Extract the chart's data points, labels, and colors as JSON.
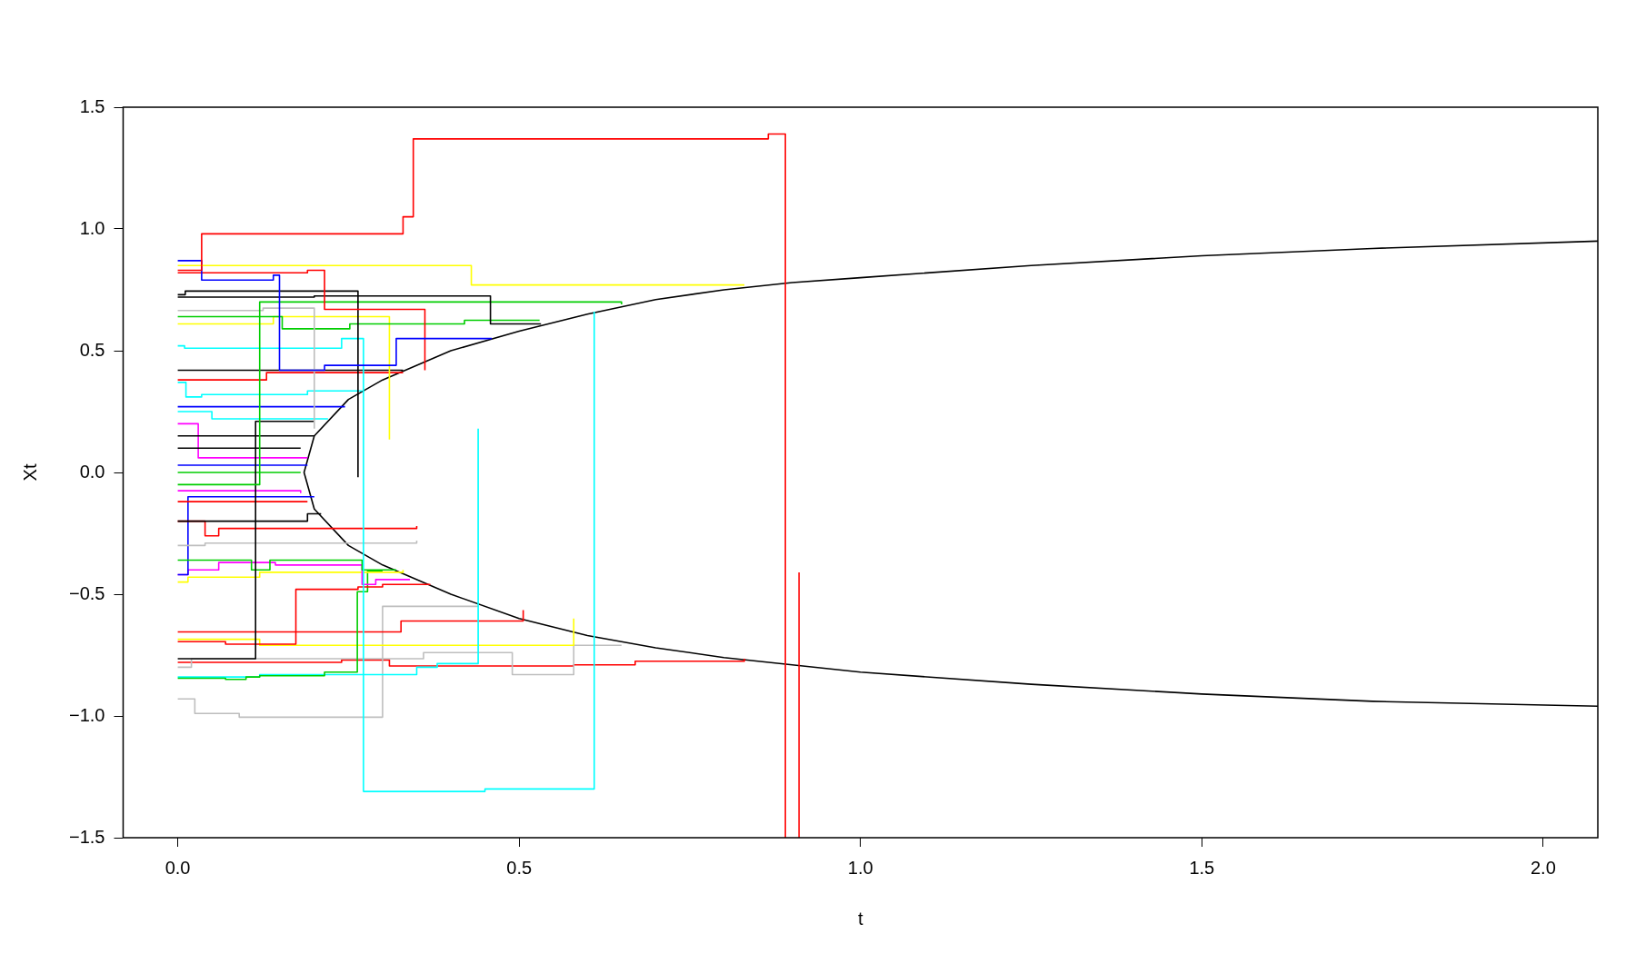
{
  "chart_data": {
    "type": "step",
    "xlabel": "t",
    "ylabel": "Xt",
    "xlim": [
      -0.08,
      2.08
    ],
    "ylim": [
      -1.5,
      1.5
    ],
    "xticks": [
      {
        "value": 0,
        "label": "0.0"
      },
      0.5,
      {
        "value": 1,
        "label": "1.0"
      },
      1.5,
      {
        "value": 2,
        "label": "2.0"
      }
    ],
    "yticks": [
      {
        "value": -1.5,
        "label": "−1.5"
      },
      {
        "value": -1,
        "label": "−1.0"
      },
      {
        "value": -0.5,
        "label": "−0.5"
      },
      {
        "value": 0,
        "label": "0.0"
      },
      0.5,
      {
        "value": 1,
        "label": "1.0"
      },
      1.5
    ],
    "grid": false,
    "legend": false,
    "line_style": "solid",
    "marker": "none",
    "series": [
      {
        "color": "#ff0000",
        "x": [
          0,
          0.035,
          0.33,
          0.345,
          0.865,
          0.89
        ],
        "values": [
          0.83,
          0.98,
          1.05,
          1.37,
          1.39,
          -1.5
        ]
      },
      {
        "color": "#ff0000",
        "x": [
          0.91,
          0.91
        ],
        "values": [
          -0.41,
          -1.5
        ]
      },
      {
        "color": "#ffff00",
        "x": [
          0,
          0.43,
          0.83
        ],
        "values": [
          0.85,
          0.77,
          0.77
        ]
      },
      {
        "color": "#0000ff",
        "x": [
          0,
          0.035,
          0.14,
          0.149,
          0.215,
          0.32,
          0.46
        ],
        "values": [
          0.87,
          0.79,
          0.81,
          0.42,
          0.44,
          0.55,
          0.55
        ]
      },
      {
        "color": "#ff0000",
        "x": [
          0,
          0.19,
          0.215,
          0.362
        ],
        "values": [
          0.82,
          0.83,
          0.67,
          0.42
        ]
      },
      {
        "color": "#000000",
        "x": [
          0,
          0.011,
          0.264
        ],
        "values": [
          0.73,
          0.745,
          -0.02
        ]
      },
      {
        "color": "#000000",
        "x": [
          0,
          0.2,
          0.458,
          0.532
        ],
        "values": [
          0.72,
          0.725,
          0.61,
          0.61
        ]
      },
      {
        "color": "#00cd00",
        "x": [
          0,
          0.12,
          0.65
        ],
        "values": [
          -0.05,
          0.7,
          0.69
        ]
      },
      {
        "color": "#bebebe",
        "x": [
          0,
          0.125,
          0.2
        ],
        "values": [
          0.665,
          0.675,
          0.18
        ]
      },
      {
        "color": "#00cd00",
        "x": [
          0,
          0.153,
          0.252,
          0.42,
          0.53
        ],
        "values": [
          0.64,
          0.59,
          0.61,
          0.625,
          0.625
        ]
      },
      {
        "color": "#ffff00",
        "x": [
          0,
          0.14,
          0.31
        ],
        "values": [
          0.61,
          0.64,
          0.135
        ]
      },
      {
        "color": "#00ffff",
        "x": [
          0,
          0.01,
          0.24,
          0.272,
          0.45,
          0.61
        ],
        "values": [
          0.52,
          0.51,
          0.55,
          -1.31,
          -1.3,
          0.66
        ]
      },
      {
        "color": "#000000",
        "x": [
          0,
          0.33
        ],
        "values": [
          0.42,
          0.42
        ]
      },
      {
        "color": "#ff0000",
        "x": [
          0,
          0.13,
          0.33
        ],
        "values": [
          0.38,
          0.41,
          0.41
        ]
      },
      {
        "color": "#00ffff",
        "x": [
          0,
          0.012,
          0.035,
          0.19,
          0.27
        ],
        "values": [
          0.37,
          0.31,
          0.32,
          0.335,
          0.335
        ]
      },
      {
        "color": "#0000ff",
        "x": [
          0,
          0.245
        ],
        "values": [
          0.27,
          0.27
        ]
      },
      {
        "color": "#00ffff",
        "x": [
          0,
          0.05,
          0.22
        ],
        "values": [
          0.25,
          0.22,
          0.22
        ]
      },
      {
        "color": "#000000",
        "x": [
          0,
          0.114,
          0.2
        ],
        "values": [
          -0.765,
          0.21,
          0.21
        ]
      },
      {
        "color": "#000000",
        "x": [
          0,
          0.2
        ],
        "values": [
          0.15,
          0.15
        ]
      },
      {
        "color": "#000000",
        "x": [
          0,
          0.18
        ],
        "values": [
          0.1,
          0.1
        ]
      },
      {
        "color": "#ff00ff",
        "x": [
          0,
          0.03,
          0.19
        ],
        "values": [
          0.2,
          0.06,
          0.06
        ]
      },
      {
        "color": "#0000ff",
        "x": [
          0,
          0.19
        ],
        "values": [
          0.03,
          0.03
        ]
      },
      {
        "color": "#00cd00",
        "x": [
          0,
          0.18
        ],
        "values": [
          0,
          0
        ]
      },
      {
        "color": "#ff00ff",
        "x": [
          0,
          0.18
        ],
        "values": [
          -0.075,
          -0.085
        ]
      },
      {
        "color": "#ff0000",
        "x": [
          0,
          0.19
        ],
        "values": [
          -0.12,
          -0.12
        ]
      },
      {
        "color": "#000000",
        "x": [
          0,
          0.19,
          0.21
        ],
        "values": [
          -0.2,
          -0.17,
          -0.17
        ]
      },
      {
        "color": "#ff0000",
        "x": [
          0,
          0.04,
          0.06,
          0.35
        ],
        "values": [
          -0.2,
          -0.26,
          -0.23,
          -0.22
        ]
      },
      {
        "color": "#bebebe",
        "x": [
          0,
          0.04,
          0.35
        ],
        "values": [
          -0.3,
          -0.29,
          -0.28
        ]
      },
      {
        "color": "#00cd00",
        "x": [
          0,
          0.108,
          0.135,
          0.27,
          0.32
        ],
        "values": [
          -0.36,
          -0.4,
          -0.36,
          -0.4,
          -0.4
        ]
      },
      {
        "color": "#0000ff",
        "x": [
          0,
          0.015,
          0.2
        ],
        "values": [
          -0.42,
          -0.1,
          -0.1
        ]
      },
      {
        "color": "#ff00ff",
        "x": [
          0,
          0.015,
          0.06,
          0.143,
          0.27,
          0.29,
          0.34
        ],
        "values": [
          -0.42,
          -0.4,
          -0.37,
          -0.38,
          -0.46,
          -0.44,
          -0.44
        ]
      },
      {
        "color": "#ffff00",
        "x": [
          0,
          0.015,
          0.12,
          0.33
        ],
        "values": [
          -0.45,
          -0.43,
          -0.41,
          -0.4
        ]
      },
      {
        "color": "#ff0000",
        "x": [
          0,
          0.07,
          0.173,
          0.264,
          0.3,
          0.37
        ],
        "values": [
          -0.695,
          -0.705,
          -0.48,
          -0.47,
          -0.46,
          -0.46
        ]
      },
      {
        "color": "#00cd00",
        "x": [
          0,
          0.07,
          0.1,
          0.12,
          0.215,
          0.263,
          0.278,
          0.3
        ],
        "values": [
          -0.845,
          -0.85,
          -0.84,
          -0.835,
          -0.82,
          -0.49,
          -0.405,
          -0.405
        ]
      },
      {
        "color": "#00ffff",
        "x": [
          0,
          0.12,
          0.35,
          0.38,
          0.44
        ],
        "values": [
          -0.84,
          -0.83,
          -0.8,
          -0.785,
          0.18
        ]
      },
      {
        "color": "#ff0000",
        "x": [
          0,
          0.327,
          0.506
        ],
        "values": [
          -0.655,
          -0.61,
          -0.565
        ]
      },
      {
        "color": "#ffff00",
        "x": [
          0,
          0.12,
          0.58
        ],
        "values": [
          -0.685,
          -0.71,
          -0.6
        ]
      },
      {
        "color": "#bebebe",
        "x": [
          0,
          0.02,
          0.36,
          0.49,
          0.58,
          0.65
        ],
        "values": [
          -0.8,
          -0.765,
          -0.74,
          -0.83,
          -0.71,
          -0.71
        ]
      },
      {
        "color": "#bebebe",
        "x": [
          0,
          0.025,
          0.09,
          0.3,
          0.44
        ],
        "values": [
          -0.93,
          -0.99,
          -1.005,
          -0.55,
          -0.55
        ]
      },
      {
        "color": "#ff0000",
        "x": [
          0,
          0.24,
          0.31,
          0.58,
          0.67,
          0.83
        ],
        "values": [
          -0.78,
          -0.77,
          -0.795,
          -0.79,
          -0.775,
          -0.765
        ]
      },
      {
        "type": "line",
        "color": "#000000",
        "x": [
          2.08,
          1.75,
          1.5,
          1.25,
          1,
          0.9,
          0.8,
          0.7,
          0.6,
          0.5,
          0.4,
          0.3,
          0.25,
          0.2,
          0.185,
          0.2,
          0.25,
          0.3,
          0.4,
          0.5,
          0.6,
          0.7,
          0.8,
          0.9,
          1,
          1.25,
          1.5,
          1.75,
          2.08
        ],
        "values": [
          0.95,
          0.92,
          0.89,
          0.85,
          0.8,
          0.78,
          0.75,
          0.71,
          0.65,
          0.58,
          0.5,
          0.38,
          0.3,
          0.15,
          0,
          -0.15,
          -0.3,
          -0.38,
          -0.5,
          -0.6,
          -0.67,
          -0.72,
          -0.76,
          -0.79,
          -0.82,
          -0.87,
          -0.91,
          -0.94,
          -0.96
        ]
      }
    ]
  }
}
